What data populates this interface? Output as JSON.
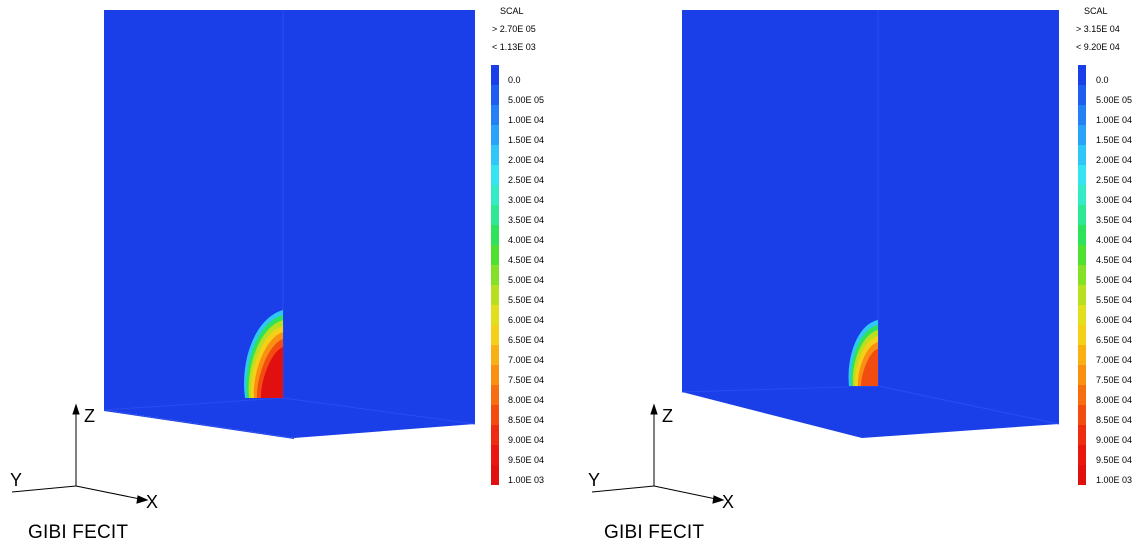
{
  "colors": {
    "background_blue": "#1a3fe8",
    "scale": [
      "#1a3fe8",
      "#1f5df0",
      "#2580f5",
      "#2aa2f7",
      "#30c6f7",
      "#35e4f0",
      "#33ecc5",
      "#2fe893",
      "#2ee25c",
      "#4fe030",
      "#85e028",
      "#b8e020",
      "#e2e01c",
      "#f6d018",
      "#f9b014",
      "#f99012",
      "#f76e10",
      "#f24c10",
      "#ee2c10",
      "#e81810",
      "#e01010"
    ]
  },
  "panels": [
    {
      "scal_title": "SCAL",
      "scal_max": "> 2.70E 05",
      "scal_min": "< 1.13E 03",
      "legend_labels": [
        "0.0",
        "5.00E 05",
        "1.00E 04",
        "1.50E 04",
        "2.00E 04",
        "2.50E 04",
        "3.00E 04",
        "3.50E 04",
        "4.00E 04",
        "4.50E 04",
        "5.00E 04",
        "5.50E 04",
        "6.00E 04",
        "6.50E 04",
        "7.00E 04",
        "7.50E 04",
        "8.00E 04",
        "8.50E 04",
        "9.00E 04",
        "9.50E 04",
        "1.00E 03"
      ],
      "axis_z": "Z",
      "axis_y": "Y",
      "axis_x": "X",
      "footer": "GIBI FECIT"
    },
    {
      "scal_title": "SCAL",
      "scal_max": "> 3.15E 04",
      "scal_min": "< 9.20E 04",
      "legend_labels": [
        "0.0",
        "5.00E 05",
        "1.00E 04",
        "1.50E 04",
        "2.00E 04",
        "2.50E 04",
        "3.00E 04",
        "3.50E 04",
        "4.00E 04",
        "4.50E 04",
        "5.00E 04",
        "5.50E 04",
        "6.00E 04",
        "6.50E 04",
        "7.00E 04",
        "7.50E 04",
        "8.00E 04",
        "8.50E 04",
        "9.00E 04",
        "9.50E 04",
        "1.00E 03"
      ],
      "axis_z": "Z",
      "axis_y": "Y",
      "axis_x": "X",
      "footer": "GIBI FECIT"
    }
  ]
}
